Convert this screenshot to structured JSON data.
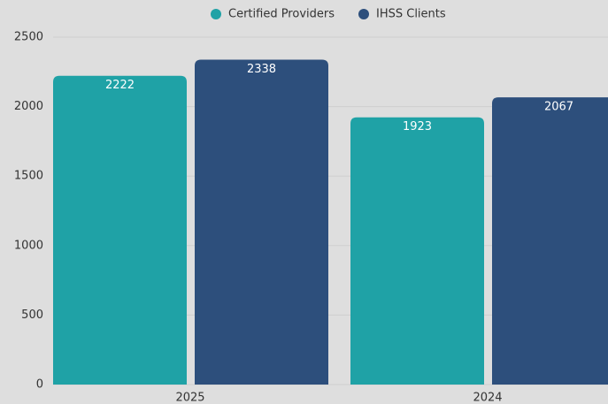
{
  "chart_data": {
    "type": "bar",
    "categories": [
      "2025",
      "2024"
    ],
    "series": [
      {
        "name": "Certified Providers",
        "color": "#1fa2a6",
        "values": [
          2222,
          1923
        ]
      },
      {
        "name": "IHSS Clients",
        "color": "#2d4f7c",
        "values": [
          2338,
          2067
        ]
      }
    ],
    "ylim": [
      0,
      2500
    ],
    "yticks": [
      0,
      500,
      1000,
      1500,
      2000,
      2500
    ],
    "grid": true,
    "legend": "top"
  }
}
